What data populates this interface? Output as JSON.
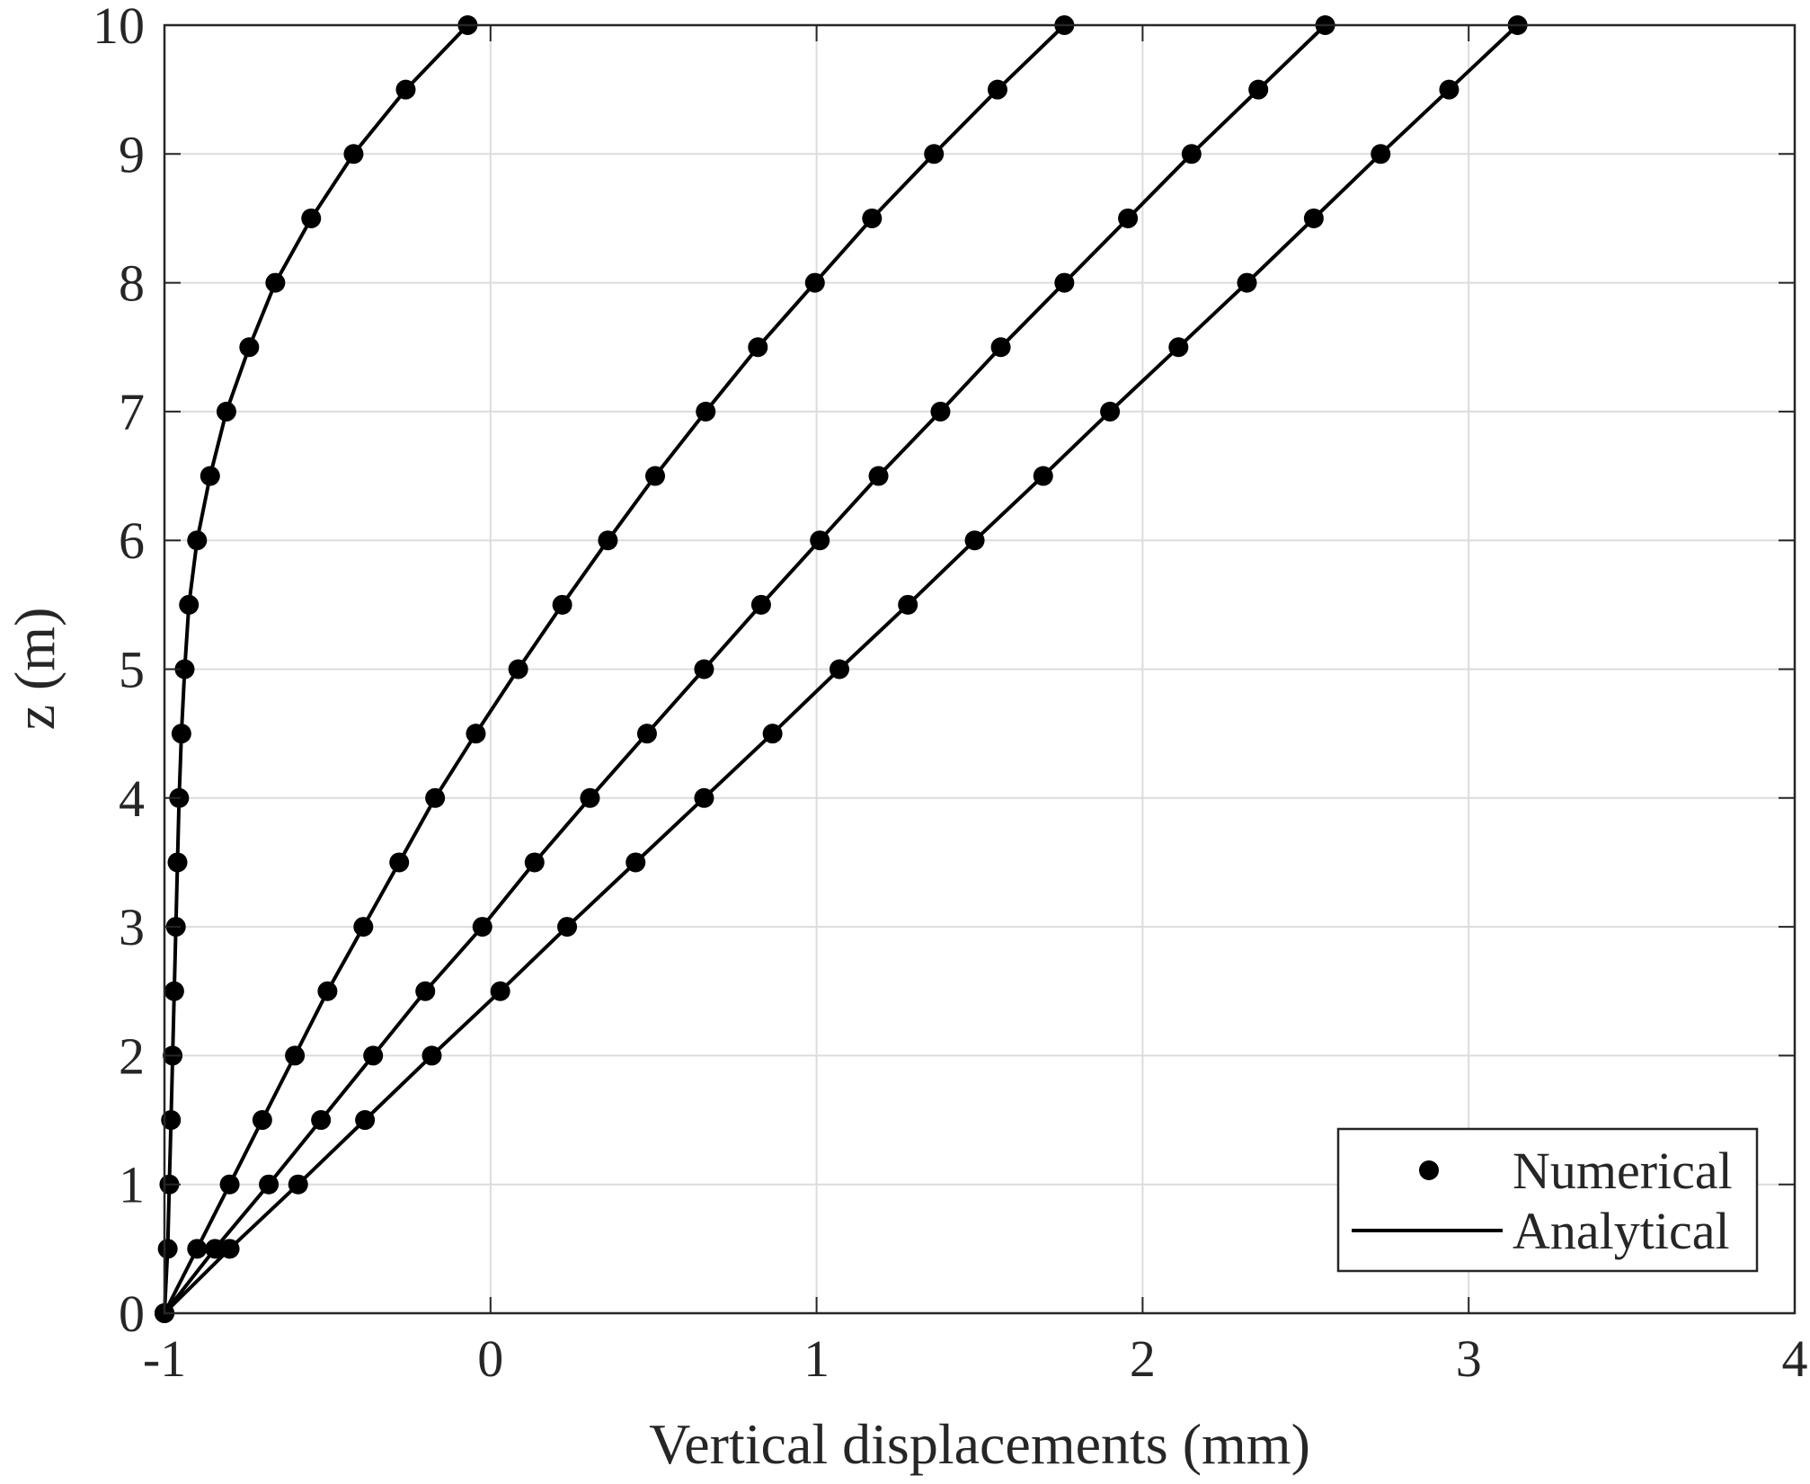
{
  "chart_data": {
    "type": "line",
    "xlabel": "Vertical displacements (mm)",
    "ylabel": "z (m)",
    "xlim": [
      -1,
      4
    ],
    "ylim": [
      0,
      10
    ],
    "xticks": [
      "-1",
      "0",
      "1",
      "2",
      "3",
      "4"
    ],
    "yticks": [
      "0",
      "1",
      "2",
      "3",
      "4",
      "5",
      "6",
      "7",
      "8",
      "9",
      "10"
    ],
    "grid": true,
    "legend": {
      "position": "bottom-right",
      "entries": [
        {
          "label": "Numerical",
          "marker": "circle"
        },
        {
          "label": "Analytical",
          "marker": "line"
        }
      ]
    },
    "z": [
      0,
      0.5,
      1,
      1.5,
      2,
      2.5,
      3,
      3.5,
      4,
      4.5,
      5,
      5.5,
      6,
      6.5,
      7,
      7.5,
      8,
      8.5,
      9,
      9.5,
      10
    ],
    "series": [
      {
        "numerical": [
          -1.0,
          -0.99,
          -0.985,
          -0.98,
          -0.975,
          -0.97,
          -0.965,
          -0.96,
          -0.955,
          -0.948,
          -0.938,
          -0.925,
          -0.9,
          -0.86,
          -0.81,
          -0.74,
          -0.66,
          -0.55,
          -0.42,
          -0.26,
          -0.07
        ]
      },
      {
        "numerical": [
          -1.0,
          -0.9,
          -0.8,
          -0.7,
          -0.6,
          -0.5,
          -0.39,
          -0.28,
          -0.17,
          -0.045,
          0.085,
          0.22,
          0.36,
          0.505,
          0.66,
          0.82,
          0.995,
          1.17,
          1.36,
          1.555,
          1.76
        ]
      },
      {
        "numerical": [
          -1.0,
          -0.845,
          -0.68,
          -0.52,
          -0.36,
          -0.2,
          -0.025,
          0.135,
          0.305,
          0.48,
          0.655,
          0.83,
          1.01,
          1.19,
          1.38,
          1.565,
          1.76,
          1.955,
          2.15,
          2.355,
          2.56
        ]
      },
      {
        "numerical": [
          -1.0,
          -0.8,
          -0.59,
          -0.385,
          -0.18,
          0.03,
          0.235,
          0.445,
          0.655,
          0.865,
          1.07,
          1.28,
          1.485,
          1.695,
          1.9,
          2.11,
          2.32,
          2.525,
          2.73,
          2.94,
          3.15
        ]
      }
    ]
  }
}
